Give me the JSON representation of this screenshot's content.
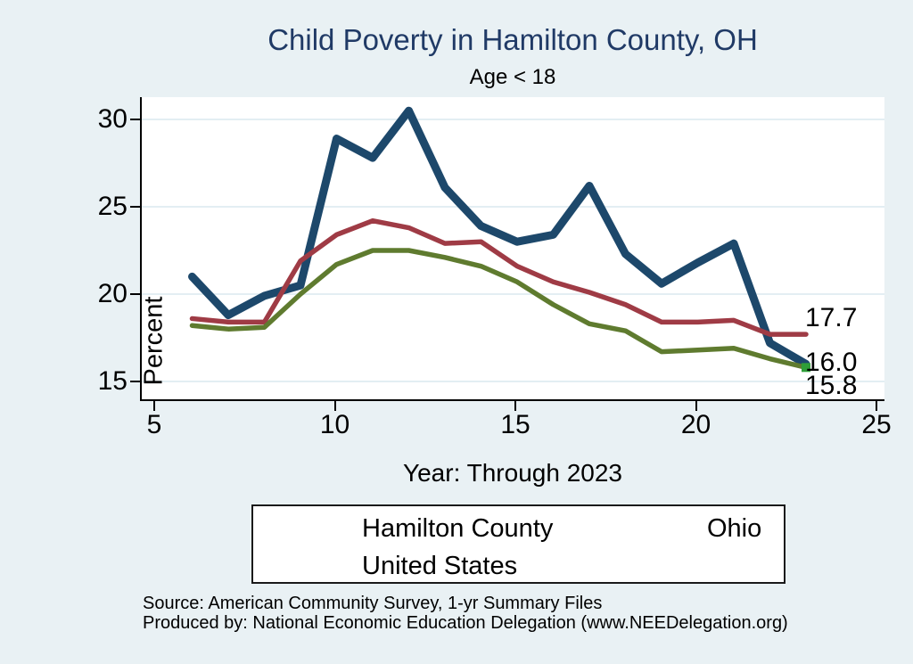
{
  "title": "Child Poverty in Hamilton County, OH",
  "subtitle": "Age < 18",
  "axes": {
    "y_label": "Percent",
    "x_label": "Year: Through 2023",
    "y_ticks": [
      15,
      20,
      25,
      30
    ],
    "x_ticks": [
      5,
      10,
      15,
      20,
      25
    ]
  },
  "end_labels": [
    "17.7",
    "16.0",
    "15.8"
  ],
  "legend": {
    "items": [
      {
        "label": "Hamilton County",
        "color": "#1d486b"
      },
      {
        "label": "Ohio",
        "color": "#9f3b45"
      },
      {
        "label": "United States",
        "color": "#5f7b2f"
      }
    ]
  },
  "source": {
    "line1": "Source: American Community Survey, 1-yr Summary Files",
    "line2": "Produced by: National Economic Education Delegation (www.NEEDelegation.org)"
  },
  "colors": {
    "background": "#e9f1f4",
    "plot_background": "#ffffff",
    "gridline": "#e3eef3",
    "title": "#203a66",
    "axis": "#000000",
    "end_marker": "#2f9e38"
  },
  "chart_data": {
    "type": "line",
    "title": "Child Poverty in Hamilton County, OH",
    "subtitle": "Age < 18",
    "xlabel": "Year: Through 2023",
    "ylabel": "Percent",
    "xlim": [
      4.6,
      25.2
    ],
    "ylim": [
      14,
      31.3
    ],
    "x_ticks": [
      5,
      10,
      15,
      20,
      25
    ],
    "y_ticks": [
      15,
      20,
      25,
      30
    ],
    "grid": true,
    "legend_position": "bottom",
    "x": [
      6,
      7,
      8,
      9,
      10,
      11,
      12,
      13,
      14,
      15,
      16,
      17,
      18,
      19,
      20,
      21,
      22,
      23
    ],
    "series": [
      {
        "name": "Hamilton County",
        "color": "#1d486b",
        "stroke_width": 9,
        "values": [
          21.0,
          18.8,
          19.9,
          20.5,
          28.9,
          27.8,
          30.5,
          26.1,
          23.9,
          23.0,
          23.4,
          26.2,
          22.3,
          20.6,
          21.8,
          22.9,
          17.2,
          16.0
        ],
        "end_label": "16.0"
      },
      {
        "name": "Ohio",
        "color": "#9f3b45",
        "stroke_width": 5.5,
        "values": [
          18.6,
          18.4,
          18.4,
          21.9,
          23.4,
          24.2,
          23.8,
          22.9,
          23.0,
          21.6,
          20.7,
          20.1,
          19.4,
          18.4,
          18.4,
          18.5,
          17.7,
          17.7
        ],
        "end_label": "17.7"
      },
      {
        "name": "United States",
        "color": "#5f7b2f",
        "stroke_width": 5.5,
        "values": [
          18.2,
          18.0,
          18.1,
          20.0,
          21.7,
          22.5,
          22.5,
          22.1,
          21.6,
          20.7,
          19.4,
          18.3,
          17.9,
          16.7,
          16.8,
          16.9,
          16.3,
          15.8
        ],
        "end_label": "15.8",
        "end_marker": true
      }
    ]
  }
}
